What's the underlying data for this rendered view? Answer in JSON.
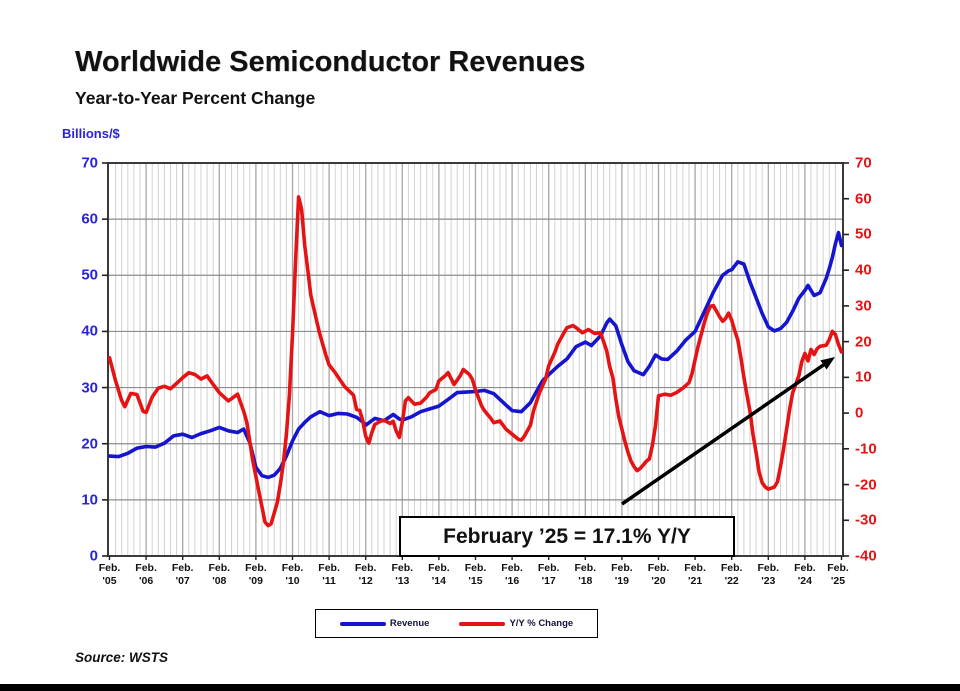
{
  "header": {
    "title": "Worldwide Semiconductor Revenues",
    "subtitle": "Year-to-Year Percent Change",
    "axis_unit_label": "Billions/$"
  },
  "annotation": {
    "text": "February ’25 = 17.1% Y/Y"
  },
  "legend": {
    "revenue_label": "Revenue",
    "yoy_label": "Y/Y % Change"
  },
  "source": "Source: WSTS",
  "colors": {
    "revenue_line": "#1515cf",
    "yoy_line": "#e51313",
    "left_axis_text": "#2a24d8",
    "right_axis_text": "#e51313",
    "grid_minor": "#d2d2d2",
    "grid_year": "#a6a6a6",
    "grid_horizontal": "#8c8c8c",
    "plot_border": "#3a3a3a",
    "arrow": "#000000"
  },
  "chart_data": {
    "type": "line",
    "title": "Worldwide Semiconductor Revenues",
    "subtitle": "Year-to-Year Percent Change",
    "x_months_span": 240,
    "x_tick_month_line1": "Feb.",
    "x_tick_years": [
      "'05",
      "'06",
      "'07",
      "'08",
      "'09",
      "'10",
      "'11",
      "'12",
      "'13",
      "'14",
      "'15",
      "'16",
      "'17",
      "'18",
      "'19",
      "'20",
      "'21",
      "'22",
      "'23",
      "'24",
      "'25"
    ],
    "left_axis": {
      "label": "Billions/$",
      "range": [
        0,
        70
      ],
      "ticks": [
        0,
        10,
        20,
        30,
        40,
        50,
        60,
        70
      ]
    },
    "right_axis": {
      "label": "Y/Y % Change",
      "range": [
        -40,
        70
      ],
      "ticks": [
        -40,
        -30,
        -20,
        -10,
        0,
        10,
        20,
        30,
        40,
        50,
        60,
        70
      ]
    },
    "grid": {
      "vertical_every_months": 2,
      "year_lines": true,
      "horizontal_every_units": 10
    },
    "legend_position": "bottom",
    "series": [
      {
        "name": "Revenue",
        "axis": "left",
        "color": "#1515cf",
        "points": [
          [
            0,
            17.8
          ],
          [
            3,
            17.7
          ],
          [
            6,
            18.3
          ],
          [
            9,
            19.2
          ],
          [
            12,
            19.5
          ],
          [
            15,
            19.4
          ],
          [
            18,
            20.1
          ],
          [
            21,
            21.4
          ],
          [
            24,
            21.7
          ],
          [
            27,
            21.1
          ],
          [
            30,
            21.8
          ],
          [
            33,
            22.3
          ],
          [
            36,
            22.9
          ],
          [
            39,
            22.3
          ],
          [
            42,
            22.0
          ],
          [
            44,
            22.6
          ],
          [
            46,
            20.2
          ],
          [
            48,
            15.8
          ],
          [
            50,
            14.3
          ],
          [
            52,
            14.0
          ],
          [
            54,
            14.4
          ],
          [
            56,
            15.6
          ],
          [
            58,
            17.8
          ],
          [
            60,
            20.5
          ],
          [
            62,
            22.6
          ],
          [
            64,
            23.8
          ],
          [
            66,
            24.8
          ],
          [
            69,
            25.7
          ],
          [
            72,
            25.0
          ],
          [
            75,
            25.4
          ],
          [
            78,
            25.3
          ],
          [
            81,
            24.7
          ],
          [
            83,
            23.9
          ],
          [
            84,
            23.3
          ],
          [
            87,
            24.5
          ],
          [
            90,
            24.1
          ],
          [
            93,
            25.2
          ],
          [
            95,
            24.4
          ],
          [
            96,
            24.2
          ],
          [
            99,
            24.8
          ],
          [
            102,
            25.7
          ],
          [
            105,
            26.2
          ],
          [
            108,
            26.7
          ],
          [
            111,
            27.9
          ],
          [
            114,
            29.1
          ],
          [
            117,
            29.2
          ],
          [
            120,
            29.3
          ],
          [
            123,
            29.5
          ],
          [
            126,
            28.9
          ],
          [
            129,
            27.4
          ],
          [
            132,
            25.9
          ],
          [
            135,
            25.7
          ],
          [
            138,
            27.3
          ],
          [
            140,
            29.3
          ],
          [
            142,
            31.2
          ],
          [
            144,
            32.3
          ],
          [
            147,
            33.8
          ],
          [
            150,
            35.1
          ],
          [
            153,
            37.3
          ],
          [
            156,
            38.1
          ],
          [
            158,
            37.5
          ],
          [
            161,
            39.2
          ],
          [
            163,
            41.5
          ],
          [
            164,
            42.2
          ],
          [
            166,
            41.0
          ],
          [
            168,
            37.6
          ],
          [
            170,
            34.6
          ],
          [
            172,
            33.0
          ],
          [
            175,
            32.3
          ],
          [
            177,
            33.8
          ],
          [
            179,
            35.8
          ],
          [
            181,
            35.1
          ],
          [
            183,
            35.0
          ],
          [
            186,
            36.5
          ],
          [
            189,
            38.5
          ],
          [
            192,
            40.0
          ],
          [
            195,
            43.5
          ],
          [
            198,
            47.0
          ],
          [
            201,
            50.0
          ],
          [
            203,
            50.8
          ],
          [
            204,
            51.0
          ],
          [
            206,
            52.4
          ],
          [
            208,
            52.0
          ],
          [
            210,
            48.8
          ],
          [
            212,
            46.0
          ],
          [
            214,
            43.2
          ],
          [
            216,
            40.8
          ],
          [
            218,
            40.1
          ],
          [
            220,
            40.5
          ],
          [
            222,
            41.6
          ],
          [
            224,
            43.6
          ],
          [
            226,
            45.9
          ],
          [
            228,
            47.3
          ],
          [
            229,
            48.2
          ],
          [
            231,
            46.4
          ],
          [
            233,
            46.9
          ],
          [
            235,
            49.5
          ],
          [
            236,
            51.2
          ],
          [
            237,
            53.2
          ],
          [
            238,
            55.6
          ],
          [
            239,
            57.6
          ],
          [
            240,
            55.3
          ]
        ]
      },
      {
        "name": "Y/Y % Change",
        "axis": "right",
        "color": "#e51313",
        "points": [
          [
            0,
            15.5
          ],
          [
            2,
            9.0
          ],
          [
            4,
            3.5
          ],
          [
            5,
            1.8
          ],
          [
            7,
            5.5
          ],
          [
            9,
            5.2
          ],
          [
            11,
            0.5
          ],
          [
            12,
            0.2
          ],
          [
            14,
            4.5
          ],
          [
            16,
            7.0
          ],
          [
            18,
            7.5
          ],
          [
            20,
            6.8
          ],
          [
            22,
            8.3
          ],
          [
            24,
            9.9
          ],
          [
            26,
            11.3
          ],
          [
            28,
            10.8
          ],
          [
            30,
            9.5
          ],
          [
            32,
            10.4
          ],
          [
            34,
            8.0
          ],
          [
            36,
            5.7
          ],
          [
            39,
            3.4
          ],
          [
            42,
            5.3
          ],
          [
            44,
            0.5
          ],
          [
            45,
            -2.6
          ],
          [
            47,
            -13.3
          ],
          [
            49,
            -22.0
          ],
          [
            51,
            -30.5
          ],
          [
            52,
            -31.5
          ],
          [
            53,
            -31.0
          ],
          [
            55,
            -25.0
          ],
          [
            56,
            -20.0
          ],
          [
            57,
            -14.0
          ],
          [
            58,
            -6.0
          ],
          [
            59,
            5.0
          ],
          [
            60,
            22.0
          ],
          [
            61,
            42.0
          ],
          [
            62,
            60.5
          ],
          [
            63,
            57.0
          ],
          [
            64,
            47.0
          ],
          [
            65,
            40.0
          ],
          [
            66,
            33.0
          ],
          [
            68,
            25.5
          ],
          [
            69,
            22.0
          ],
          [
            71,
            16.0
          ],
          [
            72,
            13.5
          ],
          [
            74,
            11.3
          ],
          [
            77,
            7.5
          ],
          [
            80,
            5.0
          ],
          [
            81,
            1.0
          ],
          [
            82,
            0.8
          ],
          [
            83,
            -2.0
          ],
          [
            84,
            -6.5
          ],
          [
            85,
            -8.4
          ],
          [
            86,
            -5.5
          ],
          [
            87,
            -3.2
          ],
          [
            89,
            -2.2
          ],
          [
            90,
            -2.0
          ],
          [
            92,
            -2.9
          ],
          [
            93,
            -2.3
          ],
          [
            94,
            -5.0
          ],
          [
            95,
            -6.8
          ],
          [
            96,
            -2.5
          ],
          [
            97,
            3.4
          ],
          [
            98,
            4.3
          ],
          [
            100,
            2.5
          ],
          [
            102,
            2.8
          ],
          [
            104,
            4.5
          ],
          [
            105,
            5.7
          ],
          [
            107,
            6.6
          ],
          [
            108,
            9.0
          ],
          [
            110,
            10.4
          ],
          [
            111,
            11.3
          ],
          [
            113,
            8.0
          ],
          [
            115,
            10.5
          ],
          [
            116,
            12.2
          ],
          [
            118,
            10.8
          ],
          [
            119,
            9.4
          ],
          [
            120,
            6.5
          ],
          [
            122,
            2.0
          ],
          [
            123,
            0.6
          ],
          [
            125,
            -1.5
          ],
          [
            126,
            -2.7
          ],
          [
            128,
            -2.2
          ],
          [
            130,
            -4.5
          ],
          [
            132,
            -5.9
          ],
          [
            134,
            -7.3
          ],
          [
            135,
            -7.6
          ],
          [
            136,
            -6.5
          ],
          [
            138,
            -3.4
          ],
          [
            139,
            0.6
          ],
          [
            141,
            5.7
          ],
          [
            143,
            9.5
          ],
          [
            144,
            13.2
          ],
          [
            146,
            17.0
          ],
          [
            147,
            19.4
          ],
          [
            149,
            22.5
          ],
          [
            150,
            23.9
          ],
          [
            152,
            24.5
          ],
          [
            153,
            23.9
          ],
          [
            155,
            22.5
          ],
          [
            156,
            22.9
          ],
          [
            157,
            23.4
          ],
          [
            159,
            22.3
          ],
          [
            161,
            22.5
          ],
          [
            162,
            20.0
          ],
          [
            163,
            17.4
          ],
          [
            164,
            13.0
          ],
          [
            165,
            10.0
          ],
          [
            166,
            4.0
          ],
          [
            167,
            -1.0
          ],
          [
            168,
            -4.5
          ],
          [
            169,
            -8.0
          ],
          [
            170,
            -11.0
          ],
          [
            171,
            -13.5
          ],
          [
            172,
            -15.0
          ],
          [
            173,
            -16.1
          ],
          [
            174,
            -15.5
          ],
          [
            175,
            -14.5
          ],
          [
            176,
            -13.5
          ],
          [
            177,
            -12.8
          ],
          [
            178,
            -9.0
          ],
          [
            179,
            -3.5
          ],
          [
            180,
            4.8
          ],
          [
            182,
            5.3
          ],
          [
            184,
            5.0
          ],
          [
            186,
            5.8
          ],
          [
            188,
            7.0
          ],
          [
            190,
            8.5
          ],
          [
            191,
            11.0
          ],
          [
            192,
            15.0
          ],
          [
            193,
            18.7
          ],
          [
            194,
            22.0
          ],
          [
            195,
            25.3
          ],
          [
            196,
            28.0
          ],
          [
            197,
            29.9
          ],
          [
            198,
            30.1
          ],
          [
            200,
            27.0
          ],
          [
            201,
            25.7
          ],
          [
            202,
            26.5
          ],
          [
            203,
            28.0
          ],
          [
            204,
            26.0
          ],
          [
            205,
            23.0
          ],
          [
            206,
            20.5
          ],
          [
            207,
            15.5
          ],
          [
            208,
            10.0
          ],
          [
            209,
            5.0
          ],
          [
            210,
            0.5
          ],
          [
            211,
            -6.0
          ],
          [
            212,
            -11.0
          ],
          [
            213,
            -16.5
          ],
          [
            214,
            -19.5
          ],
          [
            215,
            -20.7
          ],
          [
            216,
            -21.3
          ],
          [
            217,
            -21.0
          ],
          [
            218,
            -20.7
          ],
          [
            219,
            -19.3
          ],
          [
            220,
            -15.0
          ],
          [
            221,
            -10.1
          ],
          [
            222,
            -4.5
          ],
          [
            223,
            1.0
          ],
          [
            224,
            5.7
          ],
          [
            226,
            10.4
          ],
          [
            227,
            14.5
          ],
          [
            228,
            16.7
          ],
          [
            229,
            14.6
          ],
          [
            230,
            17.8
          ],
          [
            231,
            16.4
          ],
          [
            232,
            18.0
          ],
          [
            233,
            18.7
          ],
          [
            235,
            19.0
          ],
          [
            236,
            20.6
          ],
          [
            237,
            22.9
          ],
          [
            238,
            22.0
          ],
          [
            239,
            19.2
          ],
          [
            240,
            17.1
          ]
        ]
      }
    ],
    "annotation": {
      "text": "February ’25 = 17.1% Y/Y",
      "arrow_from": [
        622,
        504
      ],
      "arrow_to": [
        835,
        357
      ]
    }
  }
}
